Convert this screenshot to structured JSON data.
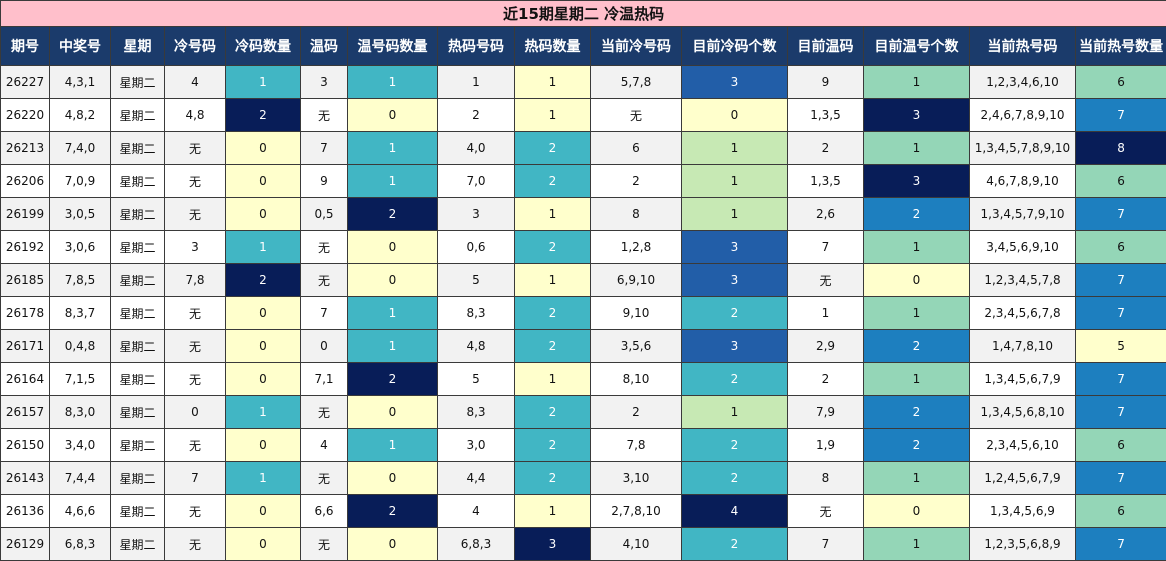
{
  "title": "近15期星期二 冷温热码",
  "headers": [
    "期号",
    "中奖号",
    "星期",
    "冷号码",
    "冷码数量",
    "温码",
    "温号码数量",
    "热码号码",
    "热码数量",
    "当前冷号码",
    "目前冷码个数",
    "目前温码",
    "目前温号个数",
    "当前热号码",
    "当前热号数量"
  ],
  "rows": [
    [
      "26227",
      "4,3,1",
      "星期二",
      "4",
      "1",
      "3",
      "1",
      "1",
      "1",
      "5,7,8",
      "3",
      "9",
      "1",
      "1,2,3,4,6,10",
      "6"
    ],
    [
      "26220",
      "4,8,2",
      "星期二",
      "4,8",
      "2",
      "无",
      "0",
      "2",
      "1",
      "无",
      "0",
      "1,3,5",
      "3",
      "2,4,6,7,8,9,10",
      "7"
    ],
    [
      "26213",
      "7,4,0",
      "星期二",
      "无",
      "0",
      "7",
      "1",
      "4,0",
      "2",
      "6",
      "1",
      "2",
      "1",
      "1,3,4,5,7,8,9,10",
      "8"
    ],
    [
      "26206",
      "7,0,9",
      "星期二",
      "无",
      "0",
      "9",
      "1",
      "7,0",
      "2",
      "2",
      "1",
      "1,3,5",
      "3",
      "4,6,7,8,9,10",
      "6"
    ],
    [
      "26199",
      "3,0,5",
      "星期二",
      "无",
      "0",
      "0,5",
      "2",
      "3",
      "1",
      "8",
      "1",
      "2,6",
      "2",
      "1,3,4,5,7,9,10",
      "7"
    ],
    [
      "26192",
      "3,0,6",
      "星期二",
      "3",
      "1",
      "无",
      "0",
      "0,6",
      "2",
      "1,2,8",
      "3",
      "7",
      "1",
      "3,4,5,6,9,10",
      "6"
    ],
    [
      "26185",
      "7,8,5",
      "星期二",
      "7,8",
      "2",
      "无",
      "0",
      "5",
      "1",
      "6,9,10",
      "3",
      "无",
      "0",
      "1,2,3,4,5,7,8",
      "7"
    ],
    [
      "26178",
      "8,3,7",
      "星期二",
      "无",
      "0",
      "7",
      "1",
      "8,3",
      "2",
      "9,10",
      "2",
      "1",
      "1",
      "2,3,4,5,6,7,8",
      "7"
    ],
    [
      "26171",
      "0,4,8",
      "星期二",
      "无",
      "0",
      "0",
      "1",
      "4,8",
      "2",
      "3,5,6",
      "3",
      "2,9",
      "2",
      "1,4,7,8,10",
      "5"
    ],
    [
      "26164",
      "7,1,5",
      "星期二",
      "无",
      "0",
      "7,1",
      "2",
      "5",
      "1",
      "8,10",
      "2",
      "2",
      "1",
      "1,3,4,5,6,7,9",
      "7"
    ],
    [
      "26157",
      "8,3,0",
      "星期二",
      "0",
      "1",
      "无",
      "0",
      "8,3",
      "2",
      "2",
      "1",
      "7,9",
      "2",
      "1,3,4,5,6,8,10",
      "7"
    ],
    [
      "26150",
      "3,4,0",
      "星期二",
      "无",
      "0",
      "4",
      "1",
      "3,0",
      "2",
      "7,8",
      "2",
      "1,9",
      "2",
      "2,3,4,5,6,10",
      "6"
    ],
    [
      "26143",
      "7,4,4",
      "星期二",
      "7",
      "1",
      "无",
      "0",
      "4,4",
      "2",
      "3,10",
      "2",
      "8",
      "1",
      "1,2,4,5,6,7,9",
      "7"
    ],
    [
      "26136",
      "4,6,6",
      "星期二",
      "无",
      "0",
      "6,6",
      "2",
      "4",
      "1",
      "2,7,8,10",
      "4",
      "无",
      "0",
      "1,3,4,5,6,9",
      "6"
    ],
    [
      "26129",
      "6,8,3",
      "星期二",
      "无",
      "0",
      "无",
      "0",
      "6,8,3",
      "3",
      "4,10",
      "2",
      "7",
      "1",
      "1,2,3,5,6,8,9",
      "7"
    ]
  ],
  "colors": {
    "title_bg": "#ffbfcb",
    "header_bg": "#1b3b6b",
    "yellow": "#ffffcc",
    "teal": "#41b6c4",
    "navy": "#081d58",
    "light_green": "#c7e9b4",
    "mint": "#94d6b7",
    "blue": "#225ea8",
    "mid_blue": "#1d7fbf"
  }
}
